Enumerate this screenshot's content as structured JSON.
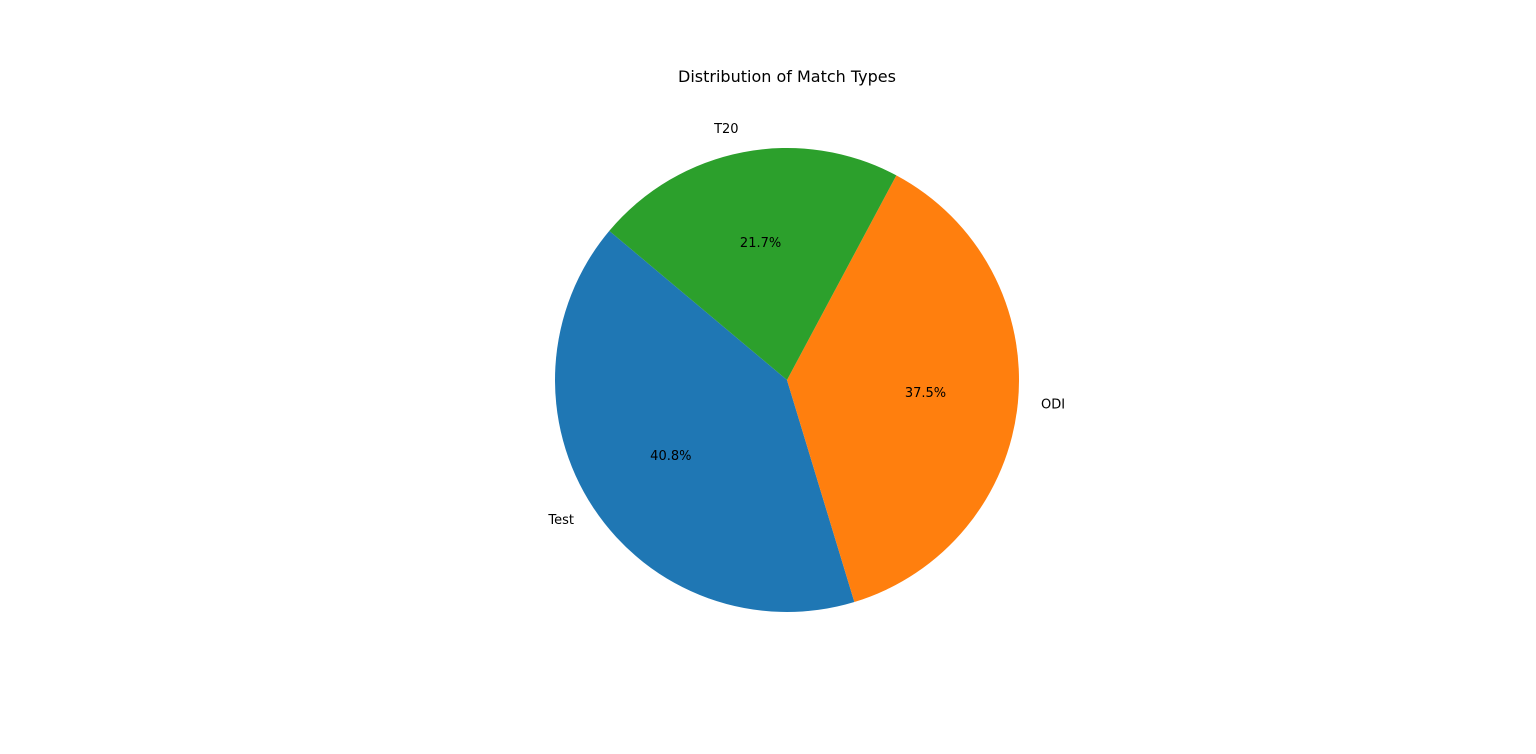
{
  "chart_data": {
    "type": "pie",
    "title": "Distribution of Match Types",
    "start_angle_deg": 140,
    "direction": "counterclockwise",
    "slices": [
      {
        "label": "Test",
        "value": 40.8,
        "pct_label": "40.8%",
        "color": "#1f77b4"
      },
      {
        "label": "ODI",
        "value": 37.5,
        "pct_label": "37.5%",
        "color": "#ff7f0e"
      },
      {
        "label": "T20",
        "value": 21.7,
        "pct_label": "21.7%",
        "color": "#2ca02c"
      }
    ]
  }
}
